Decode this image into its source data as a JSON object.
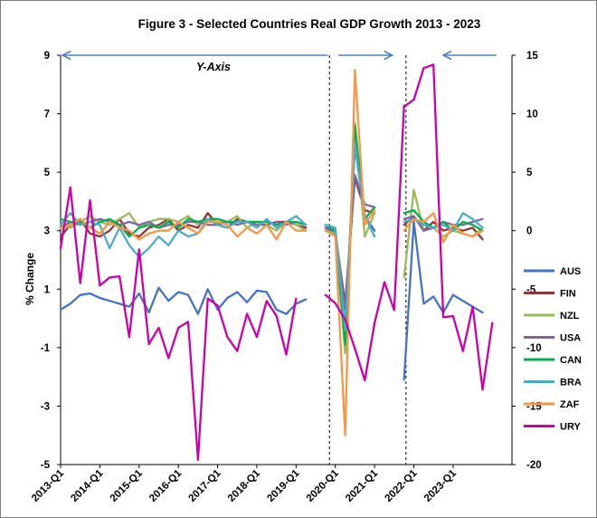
{
  "chart_data": {
    "type": "line",
    "title": "Figure 3 - Selected Countries Real GDP Growth 2013 - 2023",
    "ylabel": "% Change",
    "annotation": "Y-Axis",
    "ylim": [
      -5,
      9
    ],
    "yticks": [
      -5,
      -3,
      -1,
      1,
      3,
      5,
      7,
      9
    ],
    "y2lim": [
      -20,
      15
    ],
    "y2ticks": [
      -20,
      -15,
      -10,
      -5,
      0,
      5,
      10,
      15
    ],
    "xlim": [
      2013,
      2024.5
    ],
    "xticks": [
      {
        "label": "2013-Q1",
        "x": 2013
      },
      {
        "label": "2014-Q1",
        "x": 2014
      },
      {
        "label": "2015-Q1",
        "x": 2015
      },
      {
        "label": "2016-Q1",
        "x": 2016
      },
      {
        "label": "2017-Q1",
        "x": 2017
      },
      {
        "label": "2018-Q1",
        "x": 2018
      },
      {
        "label": "2019-Q1",
        "x": 2019
      },
      {
        "label": "2020-Q1",
        "x": 2020
      },
      {
        "label": "2021-Q1",
        "x": 2021
      },
      {
        "label": "2022-Q1",
        "x": 2022
      },
      {
        "label": "2023-Q1",
        "x": 2023
      }
    ],
    "dividers": [
      2019.85,
      2021.8
    ],
    "axis_arrows": [
      {
        "from": 2019.8,
        "to": 2013.05,
        "y": 9,
        "direction": "left"
      },
      {
        "from": 2020.08,
        "to": 2021.45,
        "y": 9,
        "direction": "right"
      },
      {
        "from": 2024.1,
        "to": 2022.75,
        "y": 9,
        "direction": "left"
      }
    ],
    "series": [
      {
        "name": "AUS",
        "color": "#4472c4",
        "axis": "left",
        "segments": [
          {
            "x0": 2013,
            "values": [
              0.3,
              0.5,
              0.8,
              0.85,
              0.7,
              0.6,
              0.5,
              0.4,
              0.85,
              0.2,
              1.05,
              0.6,
              0.9,
              0.8,
              0.15,
              1.0,
              0.3,
              0.7,
              0.9,
              0.55,
              0.95,
              0.9,
              0.3,
              0.15,
              0.5,
              0.65
            ]
          },
          {
            "x0": 2019.75,
            "values": [
              3.1,
              2.9,
              -0.3,
              5.9,
              3.5,
              3.0
            ]
          },
          {
            "x0": 2021.75,
            "values": [
              -2.1,
              3.3,
              0.5,
              0.75,
              0.2,
              0.8,
              0.6,
              0.4,
              0.2
            ]
          }
        ]
      },
      {
        "name": "FIN",
        "color": "#943634",
        "axis": "left",
        "segments": [
          {
            "x0": 2013,
            "values": [
              2.8,
              3.2,
              3.4,
              2.9,
              2.8,
              3.0,
              3.4,
              2.9,
              2.8,
              3.1,
              3.2,
              3.4,
              3.0,
              3.2,
              3.1,
              3.6,
              3.2,
              3.1,
              3.4,
              3.3,
              3.3,
              3.2,
              3.3,
              3.3,
              3.2,
              3.1
            ]
          },
          {
            "x0": 2019.75,
            "values": [
              3.0,
              2.9,
              0.5,
              4.8,
              3.7,
              3.6
            ]
          },
          {
            "x0": 2021.75,
            "values": [
              3.2,
              3.5,
              3.0,
              3.3,
              3.0,
              3.1,
              3.0,
              3.1,
              2.7
            ]
          }
        ]
      },
      {
        "name": "NZL",
        "color": "#9bbb59",
        "axis": "left",
        "segments": [
          {
            "x0": 2013,
            "values": [
              3.2,
              3.1,
              3.3,
              3.5,
              3.3,
              3.2,
              3.4,
              3.6,
              3.1,
              3.3,
              3.4,
              3.4,
              3.3,
              3.5,
              3.2,
              3.4,
              3.3,
              3.3,
              3.5,
              3.1,
              3.3,
              3.2,
              3.0,
              3.3,
              3.2,
              3.0
            ]
          },
          {
            "x0": 2019.75,
            "values": [
              3.0,
              2.9,
              -1.2,
              6.7,
              2.8,
              3.6
            ]
          },
          {
            "x0": 2021.75,
            "values": [
              1.4,
              4.4,
              3.0,
              3.1,
              2.8,
              3.0,
              2.9,
              2.8,
              3.1
            ]
          }
        ]
      },
      {
        "name": "USA",
        "color": "#8064a2",
        "axis": "left",
        "segments": [
          {
            "x0": 2013,
            "values": [
              3.1,
              3.3,
              3.2,
              3.3,
              3.4,
              3.3,
              3.2,
              3.3,
              3.2,
              3.3,
              3.1,
              3.2,
              3.2,
              3.3,
              3.3,
              3.2,
              3.2,
              3.3,
              3.2,
              3.3,
              3.2,
              3.2,
              3.3,
              3.2,
              3.3,
              3.2
            ]
          },
          {
            "x0": 2019.75,
            "values": [
              3.1,
              3.0,
              0.3,
              4.9,
              3.9,
              3.8
            ]
          },
          {
            "x0": 2021.75,
            "values": [
              3.4,
              3.5,
              3.0,
              3.1,
              3.3,
              3.2,
              3.2,
              3.3,
              3.4
            ]
          }
        ]
      },
      {
        "name": "CAN",
        "color": "#00b050",
        "axis": "left",
        "segments": [
          {
            "x0": 2013,
            "values": [
              3.4,
              3.3,
              3.3,
              3.1,
              3.3,
              3.4,
              3.2,
              2.8,
              3.1,
              3.2,
              3.1,
              3.3,
              3.1,
              3.4,
              3.3,
              3.4,
              3.4,
              3.3,
              3.3,
              3.3,
              3.3,
              3.3,
              3.2,
              3.3,
              3.3,
              3.2
            ]
          },
          {
            "x0": 2019.75,
            "values": [
              3.2,
              3.0,
              -0.9,
              6.6,
              3.4,
              3.8
            ]
          },
          {
            "x0": 2021.75,
            "values": [
              3.6,
              3.7,
              3.3,
              3.1,
              3.3,
              3.0,
              3.3,
              3.2,
              3.0
            ]
          }
        ]
      },
      {
        "name": "BRA",
        "color": "#4bacc6",
        "axis": "left",
        "segments": [
          {
            "x0": 2013,
            "values": [
              3.2,
              3.6,
              3.2,
              3.3,
              3.2,
              2.4,
              3.1,
              2.5,
              2.1,
              2.4,
              2.8,
              2.5,
              3.0,
              2.8,
              2.9,
              3.4,
              3.2,
              3.1,
              3.3,
              3.3,
              3.1,
              3.4,
              3.1,
              3.3,
              3.5,
              3.2
            ]
          },
          {
            "x0": 2019.75,
            "values": [
              3.2,
              3.1,
              -0.4,
              6.0,
              3.5,
              2.8
            ]
          },
          {
            "x0": 2021.75,
            "values": [
              3.3,
              3.4,
              3.2,
              3.1,
              3.2,
              3.0,
              3.6,
              3.4,
              3.1
            ]
          }
        ]
      },
      {
        "name": "ZAF",
        "color": "#f79646",
        "axis": "left",
        "segments": [
          {
            "x0": 2013,
            "values": [
              3.1,
              3.2,
              3.4,
              3.1,
              2.9,
              3.3,
              3.1,
              3.0,
              2.7,
              2.9,
              3.0,
              3.0,
              3.3,
              3.1,
              2.9,
              3.3,
              3.3,
              3.2,
              2.8,
              3.1,
              2.9,
              3.2,
              2.7,
              3.3,
              3.0,
              3.0
            ]
          },
          {
            "x0": 2019.75,
            "values": [
              3.0,
              2.8,
              -4.0,
              8.5,
              3.2,
              3.7
            ]
          },
          {
            "x0": 2021.75,
            "values": [
              3.0,
              3.4,
              3.3,
              3.6,
              2.6,
              3.2,
              2.9,
              2.8,
              3.0
            ]
          }
        ]
      },
      {
        "name": "URY",
        "color": "#cc00aa",
        "axis": "right",
        "segments": [
          {
            "x0": 2013,
            "values": [
              -1.5,
              3.7,
              -4.5,
              2.6,
              -4.7,
              -4.0,
              -3.9,
              -9.1,
              -1.6,
              -9.7,
              -8.3,
              -10.9,
              -8.3,
              -7.8,
              -19.6,
              -5.8,
              -6.4,
              -9.1,
              -10.3,
              -7.1,
              -9.1,
              -6.0,
              -7.3,
              -10.6,
              -5.8
            ]
          },
          {
            "x0": 2019.75,
            "values": [
              -5.5,
              -6.2,
              -7.6,
              -10.1,
              -12.8,
              -7.9,
              -4.4,
              -6.8,
              10.7
            ]
          },
          {
            "x0": 2021.75,
            "values": [
              10.6,
              11.2,
              13.9,
              14.2,
              -7.4,
              -7.3,
              -10.3,
              -6.5,
              -13.6,
              -7.9
            ]
          }
        ]
      }
    ]
  }
}
